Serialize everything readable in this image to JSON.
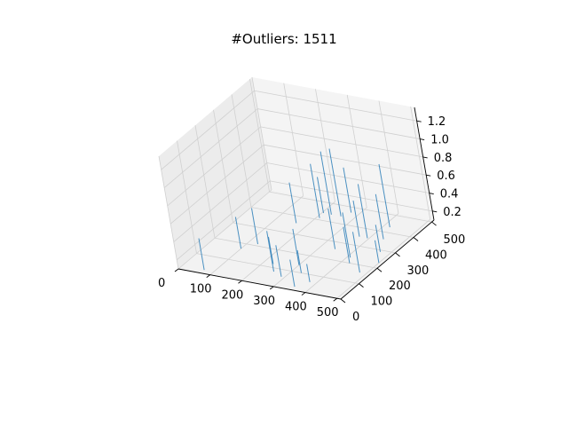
{
  "chart_data": {
    "type": "surface3d",
    "title": "#Outliers: 1511",
    "xlabel": "",
    "ylabel": "",
    "zlabel": "",
    "xlim": [
      0,
      512
    ],
    "ylim": [
      0,
      512
    ],
    "zlim": [
      0.1,
      1.35
    ],
    "x_ticks": [
      "0",
      "100",
      "200",
      "300",
      "400",
      "500"
    ],
    "y_ticks": [
      "0",
      "100",
      "200",
      "300",
      "400",
      "500"
    ],
    "z_ticks": [
      "0.2",
      "0.4",
      "0.6",
      "0.8",
      "1.0",
      "1.2"
    ],
    "grid": true,
    "series_color": "#1f77b4",
    "spikes": [
      {
        "x": 70,
        "y": 20,
        "z": 0.45
      },
      {
        "x": 100,
        "y": 170,
        "z": 0.45
      },
      {
        "x": 130,
        "y": 210,
        "z": 0.5
      },
      {
        "x": 165,
        "y": 360,
        "z": 0.55
      },
      {
        "x": 210,
        "y": 410,
        "z": 0.7
      },
      {
        "x": 230,
        "y": 440,
        "z": 0.8
      },
      {
        "x": 205,
        "y": 440,
        "z": 0.5
      },
      {
        "x": 260,
        "y": 440,
        "z": 0.85
      },
      {
        "x": 275,
        "y": 470,
        "z": 0.6
      },
      {
        "x": 230,
        "y": 120,
        "z": 0.4
      },
      {
        "x": 255,
        "y": 80,
        "z": 0.55
      },
      {
        "x": 290,
        "y": 60,
        "z": 0.45
      },
      {
        "x": 300,
        "y": 140,
        "z": 0.5
      },
      {
        "x": 330,
        "y": 100,
        "z": 0.35
      },
      {
        "x": 345,
        "y": 260,
        "z": 0.55
      },
      {
        "x": 370,
        "y": 350,
        "z": 0.5
      },
      {
        "x": 395,
        "y": 350,
        "z": 0.7
      },
      {
        "x": 420,
        "y": 430,
        "z": 0.8
      },
      {
        "x": 440,
        "y": 360,
        "z": 0.6
      },
      {
        "x": 410,
        "y": 230,
        "z": 0.6
      },
      {
        "x": 425,
        "y": 200,
        "z": 0.5
      },
      {
        "x": 470,
        "y": 290,
        "z": 0.4
      },
      {
        "x": 480,
        "y": 160,
        "z": 0.55
      },
      {
        "x": 500,
        "y": 230,
        "z": 0.35
      },
      {
        "x": 355,
        "y": 20,
        "z": 0.4
      },
      {
        "x": 380,
        "y": 60,
        "z": 0.3
      }
    ]
  }
}
